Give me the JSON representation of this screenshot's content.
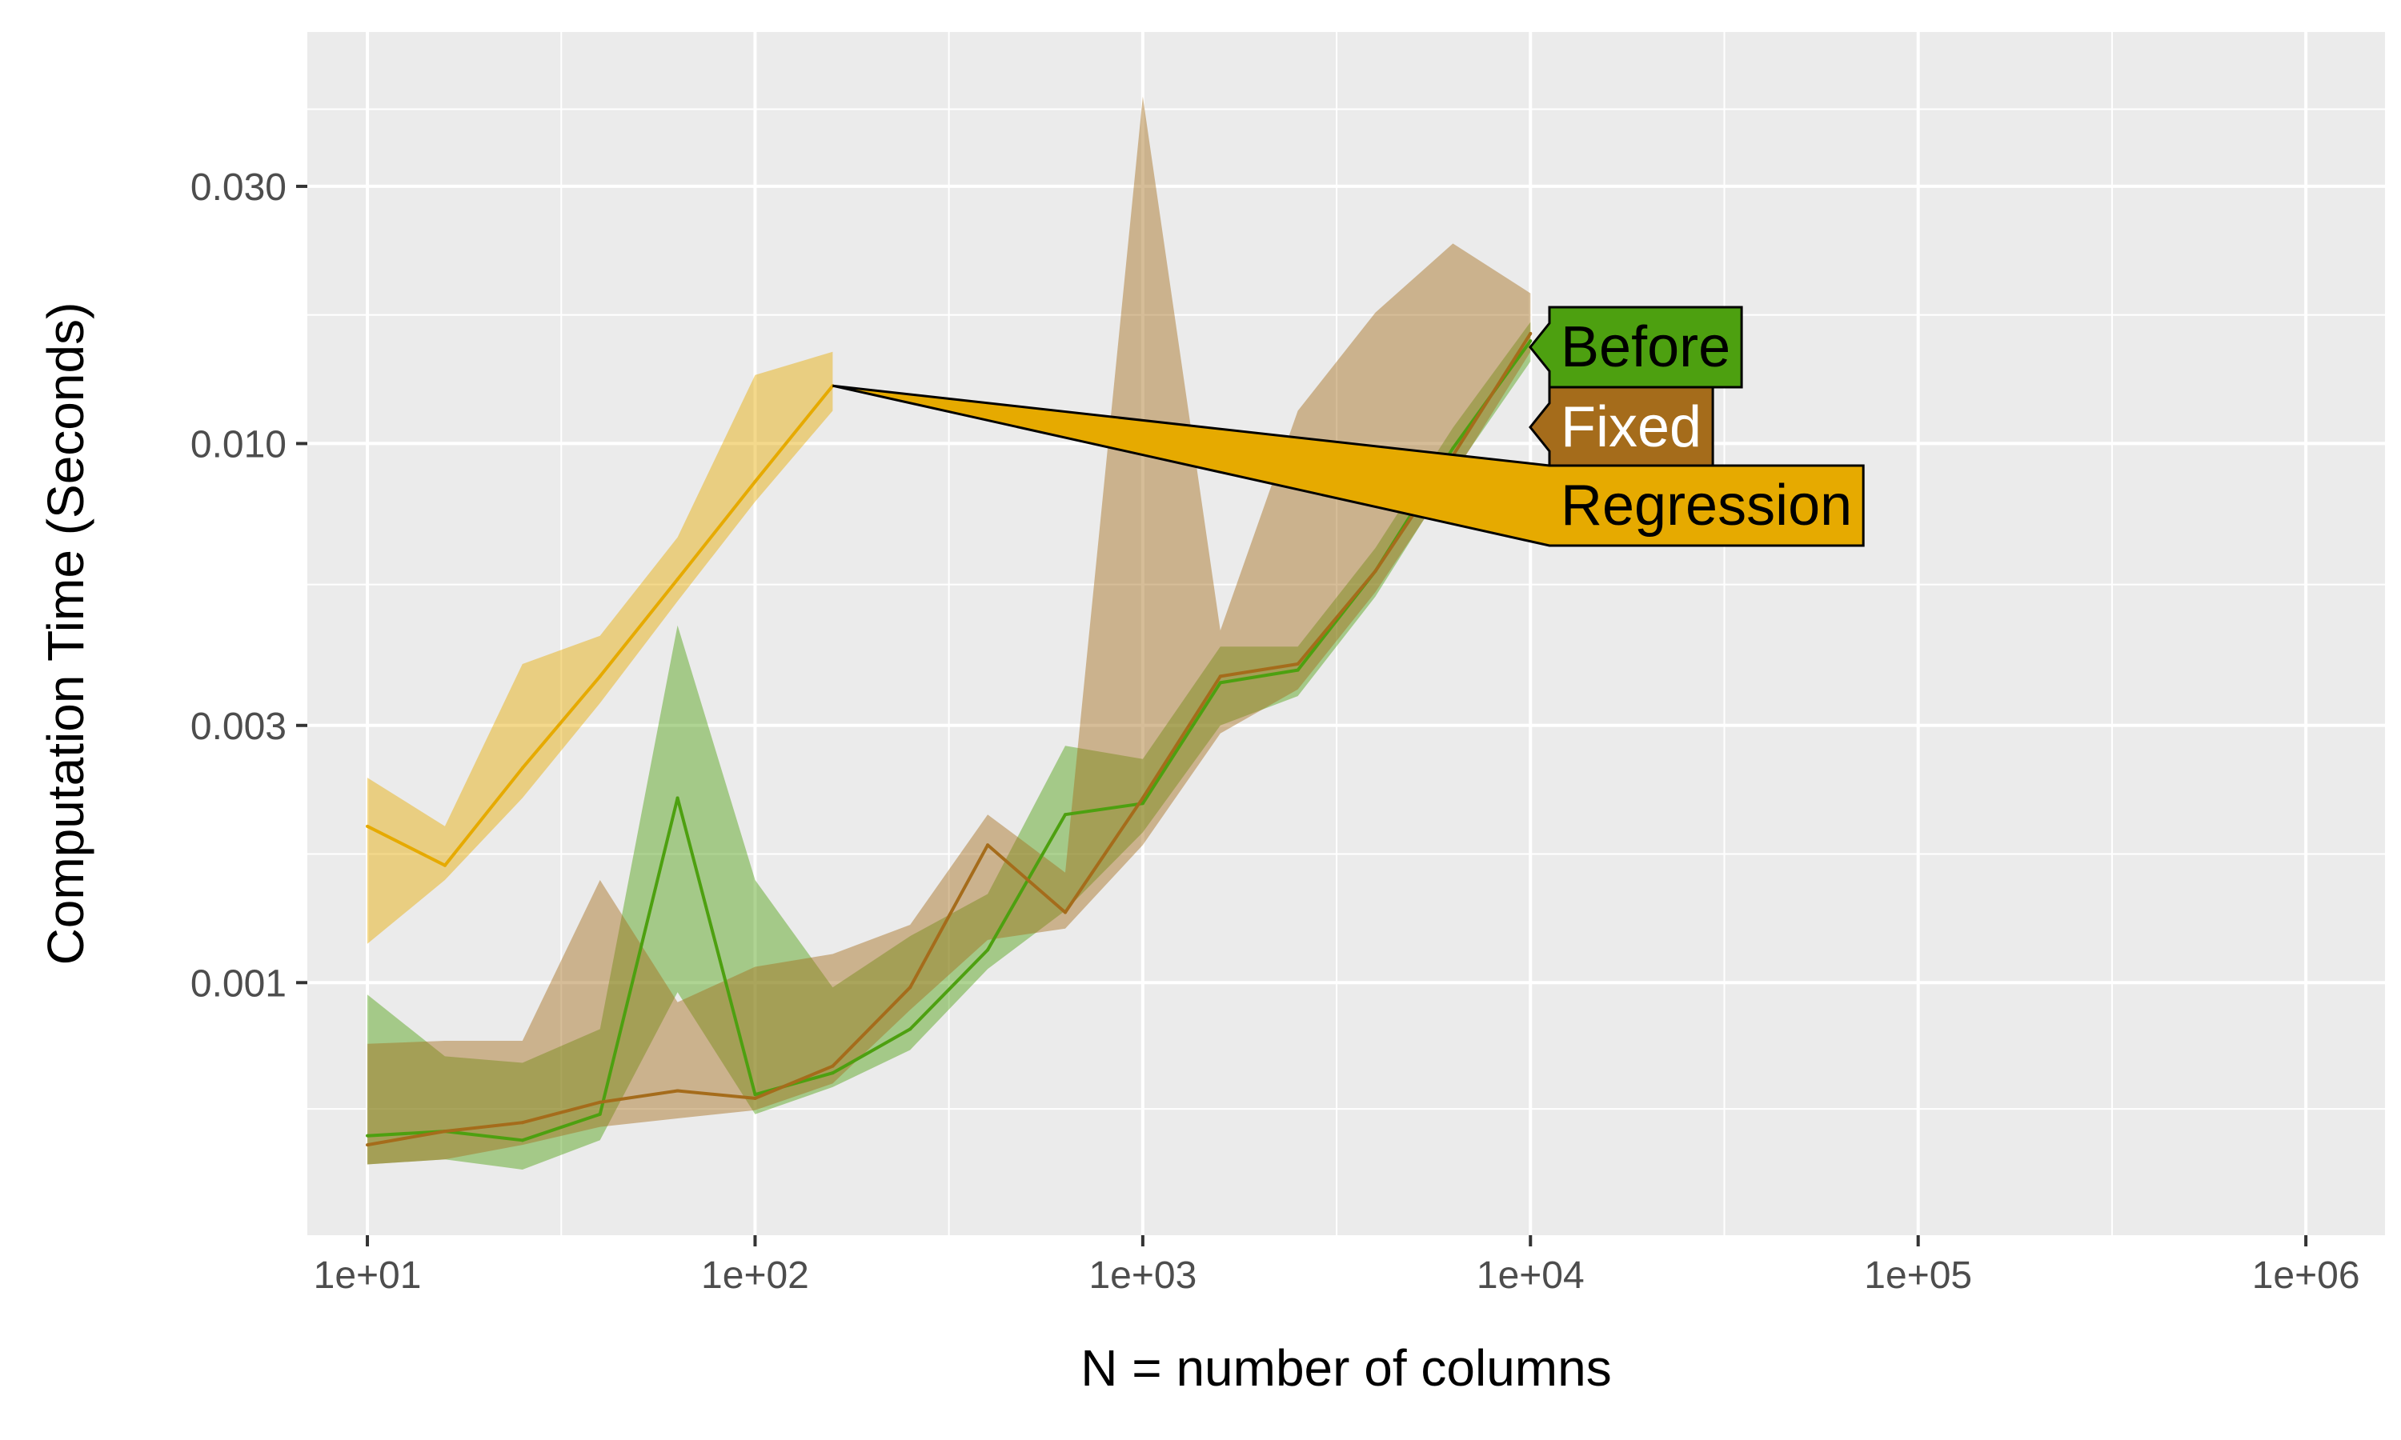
{
  "chart_data": {
    "type": "line",
    "title": "",
    "xlabel": "N = number of columns",
    "ylabel": "Computation Time (Seconds)",
    "x_scale": "log",
    "y_scale": "log",
    "xlim": [
      7,
      1600000
    ],
    "ylim": [
      0.00034,
      0.058
    ],
    "x_ticks": [
      10,
      100,
      1000,
      10000,
      100000,
      1000000
    ],
    "x_tick_labels": [
      "1e+01",
      "1e+02",
      "1e+03",
      "1e+04",
      "1e+05",
      "1e+06"
    ],
    "y_ticks": [
      0.001,
      0.003,
      0.01,
      0.03
    ],
    "y_tick_labels": [
      "0.001",
      "0.003",
      "0.010",
      "0.030"
    ],
    "grid": true,
    "legend": "direct labels at right end of series",
    "series": [
      {
        "name": "Before",
        "color": "#4DA010",
        "label_fill": "#4DA010",
        "label_text_color": "#000000",
        "x": [
          10,
          15.85,
          25.12,
          39.81,
          63.1,
          100,
          158.5,
          251.2,
          398.1,
          631,
          1000,
          1585,
          2512,
          3981,
          6310,
          10000
        ],
        "y": [
          0.00052,
          0.00053,
          0.00051,
          0.00057,
          0.0022,
          0.00062,
          0.00068,
          0.00082,
          0.00115,
          0.00205,
          0.00215,
          0.0036,
          0.0038,
          0.0058,
          0.0098,
          0.0155
        ],
        "ymin": [
          0.00046,
          0.00047,
          0.00045,
          0.00051,
          0.00096,
          0.00057,
          0.00064,
          0.00075,
          0.00106,
          0.00136,
          0.0019,
          0.003,
          0.0034,
          0.0052,
          0.0088,
          0.0142
        ],
        "ymax": [
          0.00095,
          0.00073,
          0.00071,
          0.00082,
          0.0046,
          0.00155,
          0.00098,
          0.00122,
          0.00146,
          0.00275,
          0.0026,
          0.0042,
          0.0042,
          0.0064,
          0.0107,
          0.0168
        ]
      },
      {
        "name": "Fixed",
        "color": "#A56C1B",
        "label_fill": "#A56C1B",
        "label_text_color": "#ffffff",
        "x": [
          10,
          15.85,
          25.12,
          39.81,
          63.1,
          100,
          158.5,
          251.2,
          398.1,
          631,
          1000,
          1585,
          2512,
          3981,
          6310,
          10000
        ],
        "y": [
          0.0005,
          0.00053,
          0.00055,
          0.0006,
          0.00063,
          0.00061,
          0.0007,
          0.00098,
          0.0018,
          0.00135,
          0.0022,
          0.0037,
          0.0039,
          0.0058,
          0.0095,
          0.016
        ],
        "ymin": [
          0.00046,
          0.00047,
          0.0005,
          0.00054,
          0.00056,
          0.00058,
          0.00065,
          0.00089,
          0.0012,
          0.00126,
          0.0018,
          0.0029,
          0.0035,
          0.0053,
          0.0087,
          0.0148
        ],
        "ymax": [
          0.00077,
          0.00078,
          0.00078,
          0.00155,
          0.00092,
          0.00107,
          0.00113,
          0.00128,
          0.00205,
          0.0016,
          0.044,
          0.0045,
          0.0115,
          0.0175,
          0.0235,
          0.019
        ]
      },
      {
        "name": "Regression",
        "color": "#E6AA00",
        "label_fill": "#E6AA00",
        "label_text_color": "#000000",
        "x": [
          10,
          15.85,
          25.12,
          39.81,
          63.1,
          100,
          158.5
        ],
        "y": [
          0.00195,
          0.00165,
          0.0025,
          0.0037,
          0.0056,
          0.0085,
          0.0128
        ],
        "ymin": [
          0.00118,
          0.00155,
          0.0022,
          0.0033,
          0.0051,
          0.0078,
          0.0115
        ],
        "ymax": [
          0.0024,
          0.00195,
          0.0039,
          0.0044,
          0.0067,
          0.0134,
          0.0148
        ]
      }
    ]
  }
}
